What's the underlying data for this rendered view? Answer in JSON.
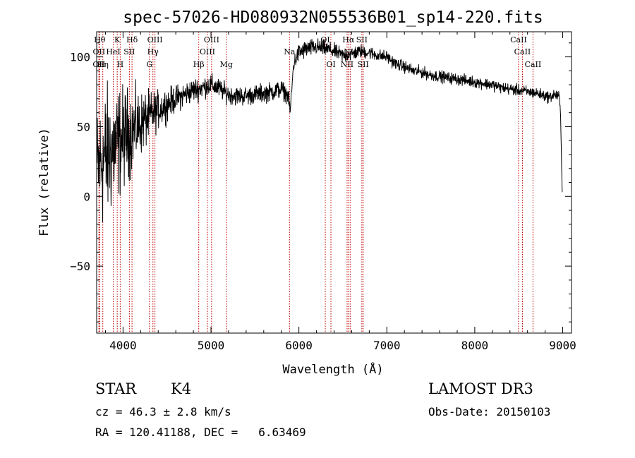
{
  "chart_data": {
    "type": "line",
    "title": "spec-57026-HD080932N055536B01_sp14-220.fits",
    "xlabel": "Wavelength (Å)",
    "ylabel": "Flux (relative)",
    "xlim": [
      3700,
      9100
    ],
    "ylim": [
      -98,
      118
    ],
    "xticks": [
      4000,
      5000,
      6000,
      7000,
      8000,
      9000
    ],
    "xtick_labels": [
      "4000",
      "5000",
      "6000",
      "7000",
      "8000",
      "9000"
    ],
    "yticks": [
      100,
      50,
      0,
      -50
    ],
    "ytick_labels": [
      "100",
      "50",
      "0",
      "−50"
    ],
    "line_color": "#000000",
    "marker_line_color": "#c00000",
    "continuum": {
      "x": [
        3705,
        3800,
        3900,
        4000,
        4100,
        4200,
        4300,
        4400,
        4500,
        4600,
        4700,
        4800,
        4900,
        5000,
        5100,
        5200,
        5300,
        5400,
        5500,
        5600,
        5700,
        5800,
        5880,
        5900,
        5940,
        6000,
        6100,
        6200,
        6300,
        6400,
        6500,
        6600,
        6700,
        6800,
        6900,
        7000,
        7100,
        7200,
        7300,
        7400,
        7500,
        7600,
        7700,
        7800,
        7900,
        8000,
        8100,
        8200,
        8300,
        8400,
        8500,
        8600,
        8700,
        8800,
        8850,
        8900,
        8960,
        8975,
        8985,
        8995
      ],
      "y": [
        20,
        28,
        35,
        42,
        47,
        52,
        57,
        62,
        66,
        70,
        73,
        76,
        78,
        80,
        77,
        73,
        72,
        72,
        73,
        74,
        75,
        77,
        72,
        60,
        95,
        103,
        106,
        107,
        106,
        104,
        101,
        102,
        104,
        103,
        101,
        100,
        95,
        93,
        90,
        89,
        87,
        86,
        85,
        84,
        83,
        82,
        81,
        80,
        78,
        77,
        76,
        75,
        74,
        72,
        71,
        73,
        72,
        60,
        30,
        0
      ],
      "noise": [
        [
          3700,
          32
        ],
        [
          3800,
          38
        ],
        [
          3900,
          32
        ],
        [
          4000,
          27
        ],
        [
          4100,
          22
        ],
        [
          4200,
          17
        ],
        [
          4300,
          13
        ],
        [
          4400,
          10
        ],
        [
          4600,
          7
        ],
        [
          4900,
          6
        ],
        [
          5200,
          5
        ],
        [
          5800,
          5
        ],
        [
          5900,
          4
        ],
        [
          6000,
          5
        ],
        [
          6400,
          4
        ],
        [
          7000,
          3.2
        ],
        [
          8000,
          3
        ],
        [
          8700,
          3
        ],
        [
          8950,
          3
        ],
        [
          8990,
          0
        ]
      ]
    },
    "features": [
      {
        "x": 3734,
        "label": "Hθ",
        "row": 0
      },
      {
        "x": 3727,
        "label": "OII",
        "row": 1
      },
      {
        "x": 3726,
        "label": "OII",
        "row": 2
      },
      {
        "x": 3770,
        "label": "Hη",
        "row": 2
      },
      {
        "x": 3889,
        "label": "HeI",
        "row": 1
      },
      {
        "x": 3934,
        "label": "K",
        "row": 0
      },
      {
        "x": 3968,
        "label": "H",
        "row": 2
      },
      {
        "x": 4072,
        "label": "SII",
        "row": 1
      },
      {
        "x": 4102,
        "label": "Hδ",
        "row": 0
      },
      {
        "x": 4300,
        "label": "G",
        "row": 2
      },
      {
        "x": 4340,
        "label": "Hγ",
        "row": 1
      },
      {
        "x": 4363,
        "label": "OIII",
        "row": 0
      },
      {
        "x": 4861,
        "label": "Hβ",
        "row": 2
      },
      {
        "x": 4959,
        "label": "OIII",
        "row": 1
      },
      {
        "x": 5007,
        "label": "OIII",
        "row": 0
      },
      {
        "x": 5175,
        "label": "Mg",
        "row": 2
      },
      {
        "x": 5893,
        "label": "Na",
        "row": 1
      },
      {
        "x": 6300,
        "label": "OI",
        "row": 0
      },
      {
        "x": 6364,
        "label": "OI",
        "row": 2
      },
      {
        "x": 6548,
        "label": "NII",
        "row": 2
      },
      {
        "x": 6563,
        "label": "Hα",
        "row": 0
      },
      {
        "x": 6583,
        "label": "NII",
        "row": 1
      },
      {
        "x": 6716,
        "label": "SII",
        "row": 0
      },
      {
        "x": 6731,
        "label": "SII",
        "row": 2
      },
      {
        "x": 8498,
        "label": "CaII",
        "row": 0
      },
      {
        "x": 8542,
        "label": "CaII",
        "row": 1
      },
      {
        "x": 8662,
        "label": "CaII",
        "row": 2
      }
    ]
  },
  "info": {
    "object_class": "STAR",
    "subclass": "K4",
    "survey": "LAMOST DR3",
    "cz": "cz = 46.3 ± 2.8 km/s",
    "obs_date": "Obs-Date: 20150103",
    "coords": "RA = 120.41188, DEC =   6.63469"
  }
}
